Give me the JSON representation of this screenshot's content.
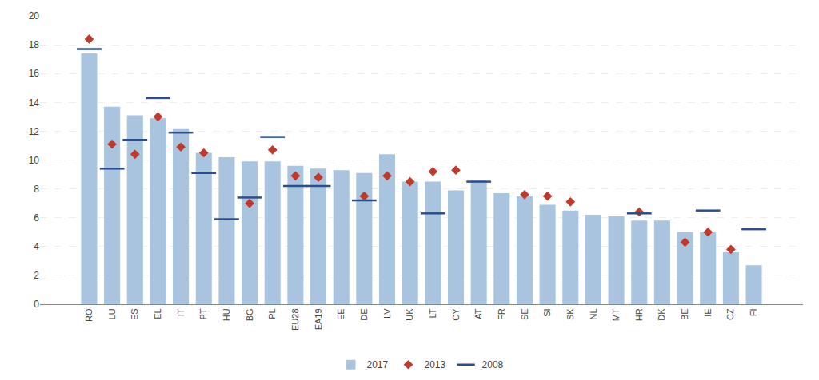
{
  "chart_data": {
    "type": "bar",
    "categories": [
      "RO",
      "LU",
      "ES",
      "EL",
      "IT",
      "PT",
      "HU",
      "BG",
      "PL",
      "EU28",
      "EA19",
      "EE",
      "DE",
      "LV",
      "UK",
      "LT",
      "CY",
      "AT",
      "FR",
      "SE",
      "SI",
      "SK",
      "NL",
      "MT",
      "HR",
      "DK",
      "BE",
      "IE",
      "CZ",
      "FI"
    ],
    "series": [
      {
        "name": "2017",
        "type": "bar",
        "color": "#a8c4df",
        "values": [
          17.4,
          13.7,
          13.1,
          12.9,
          12.2,
          10.5,
          10.2,
          9.9,
          9.9,
          9.6,
          9.4,
          9.3,
          9.1,
          10.4,
          8.5,
          8.5,
          7.9,
          8.6,
          7.7,
          7.5,
          6.9,
          6.5,
          6.2,
          6.1,
          5.8,
          5.8,
          5.0,
          5.0,
          3.6,
          2.7
        ]
      },
      {
        "name": "2013",
        "type": "scatter",
        "marker": "diamond",
        "color": "#c0392b",
        "values": [
          18.4,
          11.1,
          10.4,
          13.0,
          10.9,
          10.5,
          null,
          7.0,
          10.7,
          8.9,
          8.8,
          null,
          7.5,
          8.9,
          8.5,
          9.2,
          9.3,
          null,
          null,
          7.6,
          7.5,
          7.1,
          null,
          null,
          6.4,
          null,
          4.3,
          5.0,
          3.8,
          null
        ]
      },
      {
        "name": "2008",
        "type": "scatter",
        "marker": "line",
        "color": "#2c4e8a",
        "values": [
          17.7,
          9.4,
          11.4,
          14.3,
          11.9,
          9.1,
          5.9,
          7.4,
          11.6,
          8.2,
          8.2,
          null,
          7.2,
          null,
          null,
          6.3,
          null,
          8.5,
          null,
          null,
          null,
          null,
          null,
          null,
          6.3,
          null,
          null,
          6.5,
          null,
          5.2
        ]
      }
    ],
    "ylim": [
      0,
      20
    ],
    "yticks": [
      0,
      2,
      4,
      6,
      8,
      10,
      12,
      14,
      16,
      18,
      20
    ],
    "grid": true,
    "legend": "bottom"
  }
}
